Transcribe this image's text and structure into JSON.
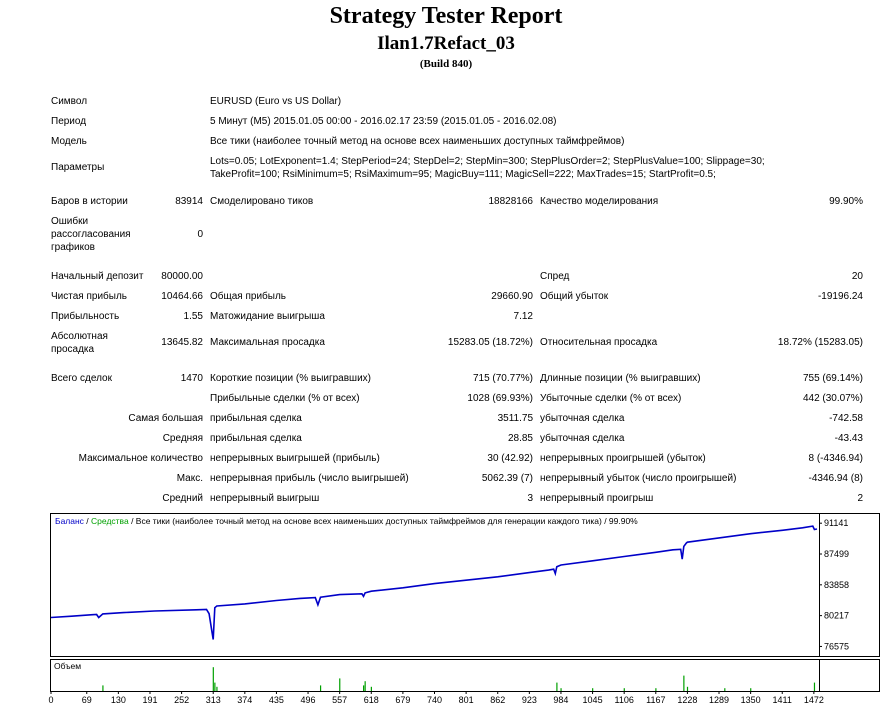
{
  "header": {
    "title": "Strategy Tester Report",
    "subtitle": "Ilan1.7Refact_03",
    "build": "(Build 840)"
  },
  "info": {
    "symbol_label": "Символ",
    "symbol_value": "EURUSD (Euro vs US Dollar)",
    "period_label": "Период",
    "period_value": "5 Минут (M5) 2015.01.05 00:00 - 2016.02.17 23:59 (2015.01.05 - 2016.02.08)",
    "model_label": "Модель",
    "model_value": "Все тики (наиболее точный метод на основе всех наименьших доступных таймфреймов)",
    "params_label": "Параметры",
    "params_line1": "Lots=0.05; LotExponent=1.4; StepPeriod=24; StepDel=2; StepMin=300; StepPlusOrder=2; StepPlusValue=100; Slippage=30;",
    "params_line2": "TakeProfit=100; RsiMinimum=5; RsiMaximum=95; MagicBuy=111; MagicSell=222; MaxTrades=15; StartProfit=0.5;"
  },
  "stats": {
    "bars_label": "Баров в истории",
    "bars_value": "83914",
    "ticks_label": "Смоделировано тиков",
    "ticks_value": "18828166",
    "quality_label": "Качество моделирования",
    "quality_value": "99.90%",
    "errors_label_1": "Ошибки",
    "errors_label_2": "рассогласования",
    "errors_label_3": "графиков",
    "errors_value": "0",
    "deposit_label": "Начальный депозит",
    "deposit_value": "80000.00",
    "spread_label": "Спред",
    "spread_value": "20",
    "net_label": "Чистая прибыль",
    "net_value": "10464.66",
    "gross_profit_label": "Общая прибыль",
    "gross_profit_value": "29660.90",
    "gross_loss_label": "Общий убыток",
    "gross_loss_value": "-19196.24",
    "pf_label": "Прибыльность",
    "pf_value": "1.55",
    "expect_label": "Матожидание выигрыша",
    "expect_value": "7.12",
    "absdd_label_1": "Абсолютная",
    "absdd_label_2": "просадка",
    "absdd_value": "13645.82",
    "maxdd_label": "Максимальная просадка",
    "maxdd_value": "15283.05 (18.72%)",
    "reldd_label": "Относительная просадка",
    "reldd_value": "18.72% (15283.05)",
    "trades_label": "Всего сделок",
    "trades_value": "1470",
    "short_label": "Короткие позиции (% выигравших)",
    "short_value": "715 (70.77%)",
    "long_label": "Длинные позиции (% выигравших)",
    "long_value": "755 (69.14%)",
    "pwin_label": "Прибыльные сделки (% от всех)",
    "pwin_value": "1028 (69.93%)",
    "ploss_label": "Убыточные сделки (% от всех)",
    "ploss_value": "442 (30.07%)",
    "largest_label": "Самая большая",
    "largest_win_label": "прибыльная сделка",
    "largest_win_value": "3511.75",
    "largest_loss_label": "убыточная сделка",
    "largest_loss_value": "-742.58",
    "avg_label": "Средняя",
    "avg_win_label": "прибыльная сделка",
    "avg_win_value": "28.85",
    "avg_loss_label": "убыточная сделка",
    "avg_loss_value": "-43.43",
    "maxcount_label": "Максимальное количество",
    "maxcw_label": "непрерывных выигрышей (прибыль)",
    "maxcw_value": "30 (42.92)",
    "maxcl_label": "непрерывных проигрышей (убыток)",
    "maxcl_value": "8 (-4346.94)",
    "maxsum_label": "Макс.",
    "maxcp_label": "непрерывная прибыль (число выигрышей)",
    "maxcp_value": "5062.39 (7)",
    "maxcloss_label": "непрерывный убыток (число проигрышей)",
    "maxcloss_value": "-4346.94 (8)",
    "avgc_label": "Средний",
    "avgcw_label": "непрерывный выигрыш",
    "avgcw_value": "3",
    "avgcl_label": "непрерывный проигрыш",
    "avgcl_value": "2"
  },
  "chart_legend": {
    "balance": "Баланс",
    "sep": " / ",
    "equity": "Средства",
    "rest": " / Все тики (наиболее точный метод на основе всех наименьших доступных таймфреймов для генерации каждого тика) / 99.90%"
  },
  "volume_label": "Объем",
  "colors": {
    "balance": "#0000c8",
    "equity": "#00a000",
    "volume": "#00a000"
  },
  "chart_data": {
    "type": "line",
    "xlabel": "",
    "ylabel": "",
    "x_ticks": [
      0,
      69,
      130,
      191,
      252,
      313,
      374,
      435,
      496,
      557,
      618,
      679,
      740,
      801,
      862,
      923,
      984,
      1045,
      1106,
      1167,
      1228,
      1289,
      1350,
      1411,
      1472
    ],
    "y_ticks": [
      91141,
      87499,
      83858,
      80217,
      76575
    ],
    "xlim": [
      0,
      1480
    ],
    "ylim": [
      75800,
      91400
    ],
    "series": [
      {
        "name": "Баланс",
        "x": [
          0,
          40,
          80,
          88,
          92,
          100,
          140,
          200,
          280,
          300,
          305,
          310,
          313,
          316,
          320,
          374,
          435,
          480,
          510,
          515,
          520,
          557,
          600,
          603,
          606,
          618,
          679,
          740,
          801,
          862,
          923,
          960,
          970,
          973,
          976,
          984,
          1045,
          1106,
          1167,
          1200,
          1215,
          1218,
          1221,
          1226,
          1228,
          1289,
          1350,
          1411,
          1450,
          1470,
          1473,
          1478
        ],
        "y": [
          80000,
          80150,
          80330,
          80350,
          80000,
          80420,
          80580,
          80760,
          80900,
          80950,
          80450,
          78500,
          77400,
          81150,
          81350,
          81600,
          82000,
          82250,
          82350,
          81500,
          82400,
          82700,
          82800,
          82500,
          82900,
          83100,
          83500,
          84000,
          84400,
          84800,
          85300,
          85600,
          85700,
          85200,
          86000,
          86200,
          86700,
          87200,
          87700,
          88000,
          88050,
          86900,
          88400,
          88800,
          88900,
          89400,
          89900,
          90300,
          90600,
          90800,
          90400,
          90450
        ]
      }
    ],
    "volume_x": [
      100,
      313,
      316,
      320,
      520,
      557,
      603,
      618,
      606,
      976,
      984,
      1045,
      1106,
      1167,
      1221,
      1228,
      1300,
      1350,
      1473
    ],
    "volume_level": [
      0.2,
      0.85,
      0.3,
      0.15,
      0.2,
      0.45,
      0.2,
      0.15,
      0.35,
      0.3,
      0.1,
      0.1,
      0.1,
      0.1,
      0.55,
      0.15,
      0.1,
      0.1,
      0.3
    ]
  }
}
